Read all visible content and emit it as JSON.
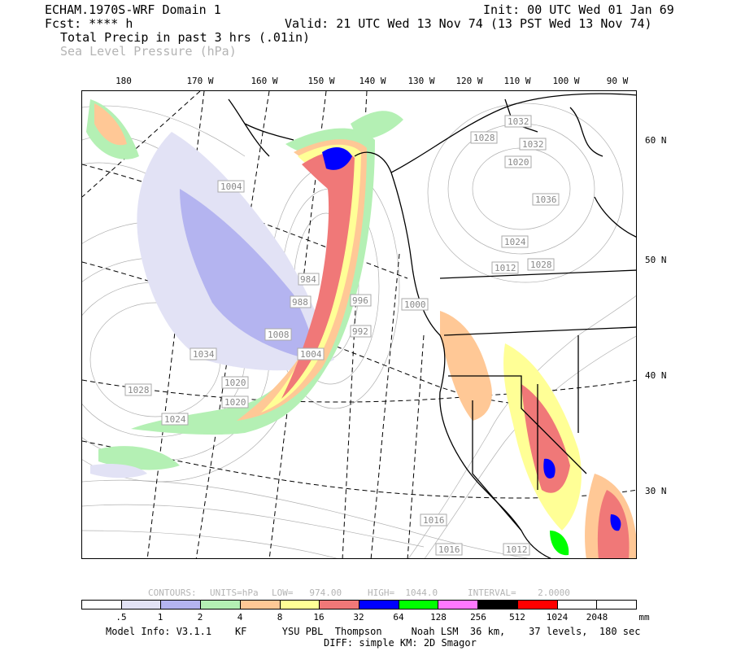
{
  "header": {
    "model_title": "ECHAM.1970S-WRF Domain 1",
    "fcst": "Fcst: **** h",
    "init": "Init: 00 UTC Wed 01 Jan 69",
    "valid": "Valid: 21 UTC Wed 13 Nov 74 (13 PST Wed 13 Nov 74)",
    "field_primary": "Total Precip in past 3 hrs (.01in)",
    "field_secondary": "Sea Level Pressure (hPa)"
  },
  "longitude_labels": [
    "180",
    "170 W",
    "160 W",
    "150 W",
    "140 W",
    "130 W",
    "120 W",
    "110 W",
    "100 W",
    "90 W"
  ],
  "latitude_labels": [
    "60 N",
    "50 N",
    "40 N",
    "30 N"
  ],
  "pressure_labels": [
    "1004",
    "1032",
    "1028",
    "1020",
    "1032",
    "1036",
    "1024",
    "1012",
    "1028",
    "1000",
    "984",
    "988",
    "996",
    "992",
    "1008",
    "1004",
    "1034",
    "1028",
    "1020",
    "1020",
    "1024",
    "1016",
    "1016",
    "1012"
  ],
  "contour_info": {
    "contours": "CONTOURS:",
    "units": "UNITS=hPa",
    "low": "LOW=   974.00",
    "high": "HIGH=  1044.0",
    "interval": "INTERVAL=    2.0000"
  },
  "legend": {
    "colors": [
      "#ffffff",
      "#e2e2f5",
      "#b4b4f0",
      "#b4f0b4",
      "#ffc896",
      "#ffff96",
      "#f07878",
      "#0000ff",
      "#00ff00",
      "#ff78ff",
      "#000000",
      "#ff0000",
      "#ffffff",
      "#ffffff"
    ],
    "values": [
      ".5",
      "1",
      "2",
      "4",
      "8",
      "16",
      "32",
      "64",
      "128",
      "256",
      "512",
      "1024",
      "2048"
    ],
    "unit": "mm"
  },
  "footer": {
    "model_info": "Model Info: V3.1.1    KF      YSU PBL  Thompson     Noah LSM  36 km,    37 levels,  180 sec",
    "diff": "DIFF: simple KM: 2D Smagor"
  }
}
